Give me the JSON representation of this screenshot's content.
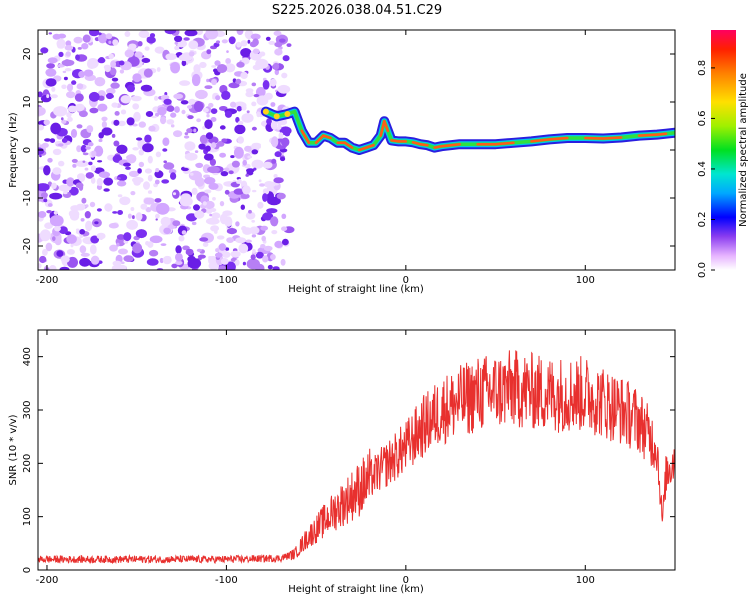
{
  "title": "S225.2026.038.04.51.C29",
  "chart_data": [
    {
      "type": "heatmap",
      "name": "spectrogram",
      "xlabel": "Height of straight line (km)",
      "ylabel": "Frequency (Hz)",
      "xlim": [
        -205,
        150
      ],
      "ylim": [
        -25,
        25
      ],
      "xticks": [
        -200,
        -100,
        0,
        100
      ],
      "yticks": [
        -20,
        -10,
        0,
        10,
        20
      ],
      "colorbar": {
        "label": "Normalized spectral amplitude",
        "range": [
          0.0,
          0.95
        ],
        "ticks": [
          0.0,
          0.2,
          0.4,
          0.6,
          0.8
        ],
        "tick_labels": [
          "0.0",
          "0.2",
          "0.4",
          "0.6",
          "0.8"
        ]
      },
      "noise_region_x": [
        -205,
        -65
      ],
      "ridge": {
        "x": [
          -78,
          -72,
          -66,
          -62,
          -58,
          -54,
          -50,
          -46,
          -42,
          -38,
          -34,
          -30,
          -26,
          -22,
          -18,
          -14,
          -12,
          -10,
          -8,
          -4,
          0,
          4,
          8,
          12,
          16,
          20,
          30,
          40,
          50,
          60,
          70,
          80,
          90,
          100,
          110,
          120,
          130,
          140,
          145,
          150
        ],
        "freq": [
          8,
          7,
          7.5,
          8,
          4,
          1.5,
          1.5,
          3,
          2.5,
          1.5,
          1.5,
          0.5,
          0,
          0.5,
          1,
          3,
          6,
          4,
          2,
          1.8,
          1.8,
          1.6,
          1.2,
          1,
          0.5,
          0.8,
          1.2,
          1.2,
          1.2,
          1.5,
          1.8,
          2.2,
          2.5,
          2.5,
          2.4,
          2.6,
          3,
          3.2,
          3.4,
          3.6
        ]
      }
    },
    {
      "type": "line",
      "name": "snr",
      "xlabel": "Height of straight line (km)",
      "ylabel": "SNR (10 * v/v)",
      "xlim": [
        -205,
        150
      ],
      "ylim": [
        0,
        450
      ],
      "xticks": [
        -200,
        -100,
        0,
        100
      ],
      "yticks": [
        0,
        100,
        200,
        300,
        400
      ],
      "color": "#e8302e",
      "envelope": {
        "x": [
          -205,
          -150,
          -100,
          -70,
          -62,
          -55,
          -40,
          -20,
          -10,
          0,
          10,
          20,
          40,
          60,
          80,
          100,
          120,
          130,
          140,
          143,
          145,
          150
        ],
        "y": [
          20,
          20,
          20,
          22,
          30,
          60,
          110,
          170,
          200,
          230,
          270,
          300,
          330,
          340,
          330,
          330,
          300,
          280,
          230,
          90,
          180,
          210
        ]
      }
    }
  ]
}
